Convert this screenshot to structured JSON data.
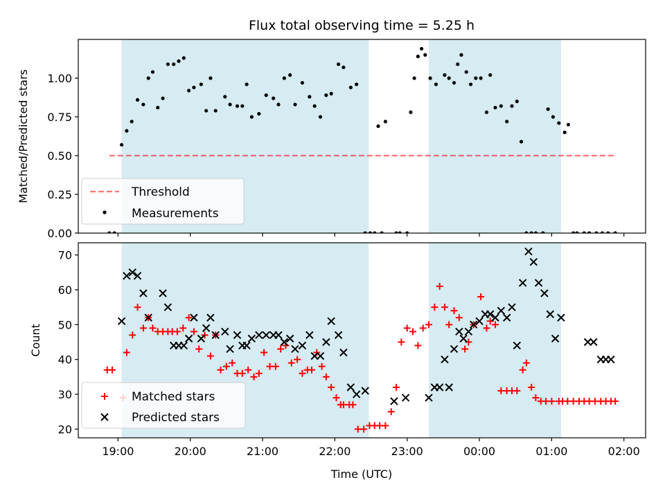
{
  "title": "Flux total observing time = 5.25 h",
  "colors": {
    "shade": "#add8e6",
    "threshold": "#ff0000",
    "measurement": "#000000",
    "matched": "#ff0000",
    "predicted": "#000000"
  },
  "chart_data": [
    {
      "type": "scatter",
      "ylabel": "Matched/Predicted stars",
      "xlim_hours": [
        18.45,
        26.3
      ],
      "ylim": [
        0,
        1.25
      ],
      "yticks": [
        0.0,
        0.25,
        0.5,
        0.75,
        1.0
      ],
      "ytick_labels": [
        "0.00",
        "0.25",
        "0.50",
        "0.75",
        "1.00"
      ],
      "legend_position": "lower-left",
      "threshold": {
        "name": "Threshold",
        "value": 0.5,
        "x_range": [
          18.88,
          25.88
        ]
      },
      "shaded_intervals": [
        [
          19.05,
          22.47
        ],
        [
          23.3,
          25.13
        ]
      ],
      "series": [
        {
          "name": "Measurements",
          "x": [
            18.88,
            18.95,
            19.05,
            19.12,
            19.19,
            19.27,
            19.35,
            19.42,
            19.48,
            19.55,
            19.62,
            19.69,
            19.77,
            19.84,
            19.91,
            19.98,
            20.05,
            20.15,
            20.22,
            20.28,
            20.35,
            20.48,
            20.55,
            20.65,
            20.72,
            20.78,
            20.85,
            20.95,
            21.05,
            21.15,
            21.22,
            21.3,
            21.38,
            21.45,
            21.55,
            21.65,
            21.72,
            21.8,
            21.88,
            21.95,
            22.05,
            22.12,
            22.22,
            22.3,
            22.42,
            22.49,
            22.55,
            22.6,
            22.65,
            22.7,
            22.85,
            22.9,
            23.0,
            23.05,
            23.1,
            23.15,
            23.2,
            23.25,
            23.32,
            23.4,
            23.52,
            23.58,
            23.65,
            23.7,
            23.75,
            23.82,
            23.88,
            23.95,
            24.02,
            24.1,
            24.15,
            24.22,
            24.3,
            24.38,
            24.45,
            24.52,
            24.58,
            24.65,
            24.72,
            24.78,
            24.88,
            24.95,
            25.02,
            25.1,
            25.18,
            25.23,
            25.3,
            25.35,
            25.45,
            25.52,
            25.62,
            25.7,
            25.78,
            25.88
          ],
          "y": [
            0.0,
            0.0,
            0.57,
            0.66,
            0.72,
            0.86,
            0.83,
            1.0,
            1.04,
            0.81,
            0.87,
            1.09,
            1.09,
            1.11,
            1.13,
            0.92,
            0.94,
            0.96,
            0.79,
            1.0,
            0.79,
            0.88,
            0.83,
            0.82,
            0.82,
            0.96,
            0.75,
            0.77,
            0.89,
            0.87,
            0.83,
            1.0,
            1.02,
            0.83,
            0.97,
            0.88,
            0.82,
            0.75,
            0.89,
            0.9,
            1.09,
            1.07,
            0.94,
            0.96,
            0.0,
            0.0,
            0.0,
            0.69,
            0.0,
            0.72,
            0.0,
            0.0,
            0.0,
            0.78,
            1.0,
            1.14,
            1.19,
            1.15,
            1.0,
            0.96,
            1.02,
            1.0,
            0.97,
            1.09,
            1.15,
            1.04,
            0.96,
            1.0,
            1.0,
            0.78,
            1.02,
            0.81,
            0.82,
            0.72,
            0.82,
            0.85,
            0.59,
            0.0,
            0.0,
            0.0,
            0.0,
            0.8,
            0.75,
            0.71,
            0.65,
            0.7,
            0.0,
            0.0,
            0.0,
            0.0,
            0.0,
            0.0,
            0.0,
            0.0
          ]
        }
      ]
    },
    {
      "type": "scatter",
      "ylabel": "Count",
      "xlabel": "Time (UTC)",
      "xlim_hours": [
        18.45,
        26.3
      ],
      "ylim": [
        17.5,
        73.5
      ],
      "yticks": [
        20,
        30,
        40,
        50,
        60,
        70
      ],
      "ytick_labels": [
        "20",
        "30",
        "40",
        "50",
        "60",
        "70"
      ],
      "xticks_hours": [
        19,
        20,
        21,
        22,
        23,
        24,
        25,
        26
      ],
      "xtick_labels": [
        "19:00",
        "20:00",
        "21:00",
        "22:00",
        "23:00",
        "00:00",
        "01:00",
        "02:00"
      ],
      "legend_position": "lower-left",
      "shaded_intervals": [
        [
          19.05,
          22.47
        ],
        [
          23.3,
          25.13
        ]
      ],
      "series": [
        {
          "name": "Matched stars",
          "marker": "plus",
          "x": [
            18.85,
            18.92,
            19.07,
            19.12,
            19.2,
            19.27,
            19.35,
            19.42,
            19.48,
            19.55,
            19.62,
            19.69,
            19.75,
            19.82,
            19.9,
            19.98,
            20.05,
            20.12,
            20.2,
            20.28,
            20.35,
            20.42,
            20.5,
            20.58,
            20.65,
            20.72,
            20.8,
            20.88,
            20.95,
            21.02,
            21.1,
            21.18,
            21.25,
            21.32,
            21.4,
            21.48,
            21.55,
            21.62,
            21.68,
            21.75,
            21.82,
            21.88,
            21.95,
            22.02,
            22.08,
            22.12,
            22.2,
            22.25,
            22.32,
            22.4,
            22.48,
            22.55,
            22.62,
            22.7,
            22.78,
            22.85,
            22.92,
            23.0,
            23.08,
            23.15,
            23.22,
            23.3,
            23.38,
            23.45,
            23.52,
            23.58,
            23.65,
            23.72,
            23.8,
            23.85,
            23.92,
            24.02,
            24.1,
            24.15,
            24.22,
            24.3,
            24.38,
            24.45,
            24.52,
            24.6,
            24.65,
            24.72,
            24.78,
            24.85,
            24.92,
            25.0,
            25.1,
            25.15,
            25.22,
            25.3,
            25.38,
            25.45,
            25.52,
            25.6,
            25.68,
            25.75,
            25.82,
            25.88
          ],
          "y": [
            37,
            37,
            29,
            42,
            47,
            55,
            49,
            52,
            49,
            48,
            48,
            48,
            48,
            48,
            49,
            52,
            48,
            43,
            47,
            41,
            47,
            37,
            38,
            39,
            36,
            36,
            37,
            35,
            36,
            42,
            38,
            38,
            43,
            44,
            39,
            40,
            36,
            37,
            37,
            42,
            38,
            35,
            32,
            29,
            27,
            27,
            27,
            27,
            20,
            20,
            21,
            21,
            21,
            21,
            25,
            32,
            45,
            49,
            48,
            44,
            49,
            50,
            55,
            61,
            55,
            50,
            54,
            52,
            43,
            45,
            50,
            58,
            49,
            51,
            50,
            31,
            31,
            31,
            31,
            37,
            39,
            32,
            29,
            28,
            28,
            28,
            28,
            28,
            28,
            28,
            28,
            28,
            28,
            28,
            28,
            28,
            28,
            28
          ]
        },
        {
          "name": "Predicted stars",
          "marker": "x",
          "x": [
            19.05,
            19.12,
            19.2,
            19.27,
            19.35,
            19.42,
            19.62,
            19.69,
            19.77,
            19.84,
            19.91,
            19.98,
            20.05,
            20.15,
            20.22,
            20.28,
            20.35,
            20.48,
            20.55,
            20.65,
            20.72,
            20.78,
            20.85,
            20.95,
            21.05,
            21.15,
            21.22,
            21.3,
            21.38,
            21.45,
            21.55,
            21.65,
            21.72,
            21.8,
            21.88,
            21.95,
            22.05,
            22.12,
            22.22,
            22.3,
            22.42,
            22.82,
            22.98,
            23.3,
            23.38,
            23.45,
            23.52,
            23.58,
            23.65,
            23.72,
            23.78,
            23.85,
            23.92,
            24.0,
            24.08,
            24.15,
            24.22,
            24.3,
            24.38,
            24.45,
            24.52,
            24.6,
            24.68,
            24.75,
            24.82,
            24.9,
            24.98,
            25.05,
            25.13,
            25.5,
            25.58,
            25.68,
            25.75,
            25.82
          ],
          "y": [
            51,
            64,
            65,
            64,
            59,
            52,
            59,
            55,
            44,
            44,
            44,
            46,
            52,
            46,
            49,
            52,
            47,
            48,
            43,
            47,
            44,
            44,
            46,
            47,
            47,
            47,
            47,
            45,
            46,
            43,
            44,
            47,
            41,
            41,
            45,
            51,
            47,
            42,
            32,
            30,
            31,
            28,
            29,
            29,
            32,
            32,
            40,
            32,
            43,
            48,
            46,
            48,
            50,
            51,
            53,
            53,
            52,
            54,
            52,
            55,
            44,
            62,
            71,
            68,
            62,
            59,
            53,
            46,
            52,
            45,
            45,
            40,
            40,
            40
          ]
        }
      ]
    }
  ]
}
